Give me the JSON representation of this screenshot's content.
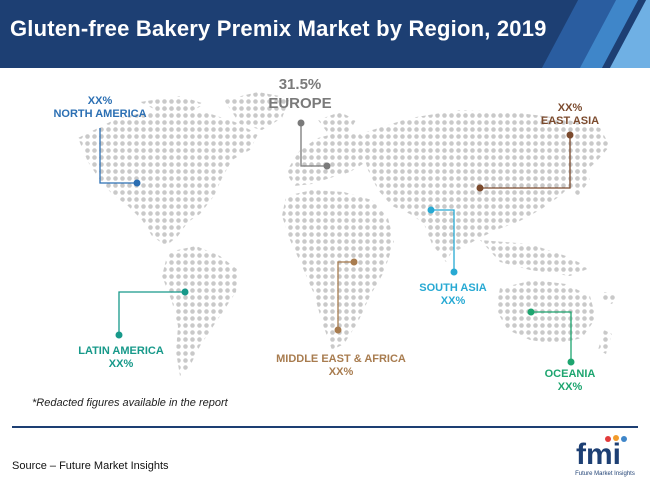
{
  "title": "Gluten-free Bakery Premix Market by Region, 2019",
  "colors": {
    "header_bg": "#1d3f73",
    "stripe_1": "#2a5da0",
    "stripe_2": "#3f86c9",
    "stripe_3": "#6fb0e4",
    "map_dot": "#c9c9c9",
    "rule": "#1d3f73"
  },
  "regions": {
    "north_america": {
      "name": "NORTH AMERICA",
      "value": "XX%",
      "color": "#2b6fb3"
    },
    "europe": {
      "name": "EUROPE",
      "value": "31.5%",
      "color": "#7a7a7a"
    },
    "east_asia": {
      "name": "EAST ASIA",
      "value": "XX%",
      "color": "#7b4a2d"
    },
    "south_asia": {
      "name": "SOUTH ASIA",
      "value": "XX%",
      "color": "#27a9d3"
    },
    "latin_america": {
      "name": "LATIN AMERICA",
      "value": "XX%",
      "color": "#17998a"
    },
    "mea": {
      "name": "MIDDLE EAST & AFRICA",
      "value": "XX%",
      "color": "#a87c4f"
    },
    "oceania": {
      "name": "OCEANIA",
      "value": "XX%",
      "color": "#1da56f"
    }
  },
  "footnote": "*Redacted figures available in the report",
  "source": "Source – Future Market Insights",
  "logo": {
    "mark": "fmi",
    "tagline": "Future Market Insights"
  }
}
